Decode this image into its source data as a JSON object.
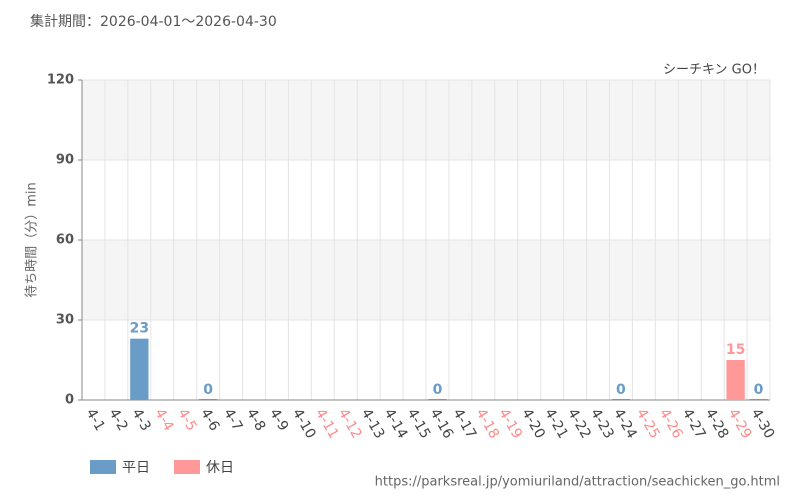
{
  "chart_data": {
    "type": "bar",
    "title": "集計期間：2026-04-01～2026-04-30",
    "subtitle": "シーチキン GO！",
    "y_label": "待ち時間（分）min",
    "source": "https://parksreal.jp/yomiuriland/attraction/seachicken_go.html",
    "categories": [
      "4-1",
      "4-2",
      "4-3",
      "4-4",
      "4-5",
      "4-6",
      "4-7",
      "4-8",
      "4-9",
      "4-10",
      "4-11",
      "4-12",
      "4-13",
      "4-14",
      "4-15",
      "4-16",
      "4-17",
      "4-18",
      "4-19",
      "4-20",
      "4-21",
      "4-22",
      "4-23",
      "4-24",
      "4-25",
      "4-26",
      "4-27",
      "4-28",
      "4-29",
      "4-30"
    ],
    "category_colors": [
      "#444",
      "#444",
      "#444",
      "#ff8a8a",
      "#ff8a8a",
      "#444",
      "#444",
      "#444",
      "#444",
      "#444",
      "#ff8a8a",
      "#ff8a8a",
      "#444",
      "#444",
      "#444",
      "#444",
      "#444",
      "#ff8a8a",
      "#ff8a8a",
      "#444",
      "#444",
      "#444",
      "#444",
      "#444",
      "#ff8a8a",
      "#ff8a8a",
      "#444",
      "#444",
      "#ff8a8a",
      "#444"
    ],
    "series": [
      {
        "name": "平日",
        "color": "#6a9cc8",
        "values": [
          null,
          null,
          23,
          null,
          null,
          0,
          null,
          null,
          null,
          null,
          null,
          null,
          null,
          null,
          null,
          0,
          null,
          null,
          null,
          null,
          null,
          null,
          null,
          0,
          null,
          null,
          null,
          null,
          null,
          0
        ]
      },
      {
        "name": "休日",
        "color": "#ff9999",
        "values": [
          null,
          null,
          null,
          null,
          null,
          null,
          null,
          null,
          null,
          null,
          null,
          null,
          null,
          null,
          null,
          null,
          null,
          null,
          null,
          null,
          null,
          null,
          null,
          null,
          null,
          null,
          null,
          null,
          15,
          null
        ]
      }
    ],
    "ylim": [
      0,
      120
    ],
    "yticks": [
      0,
      30,
      60,
      90,
      120
    ],
    "grid": true,
    "legend": "bottom-left"
  }
}
